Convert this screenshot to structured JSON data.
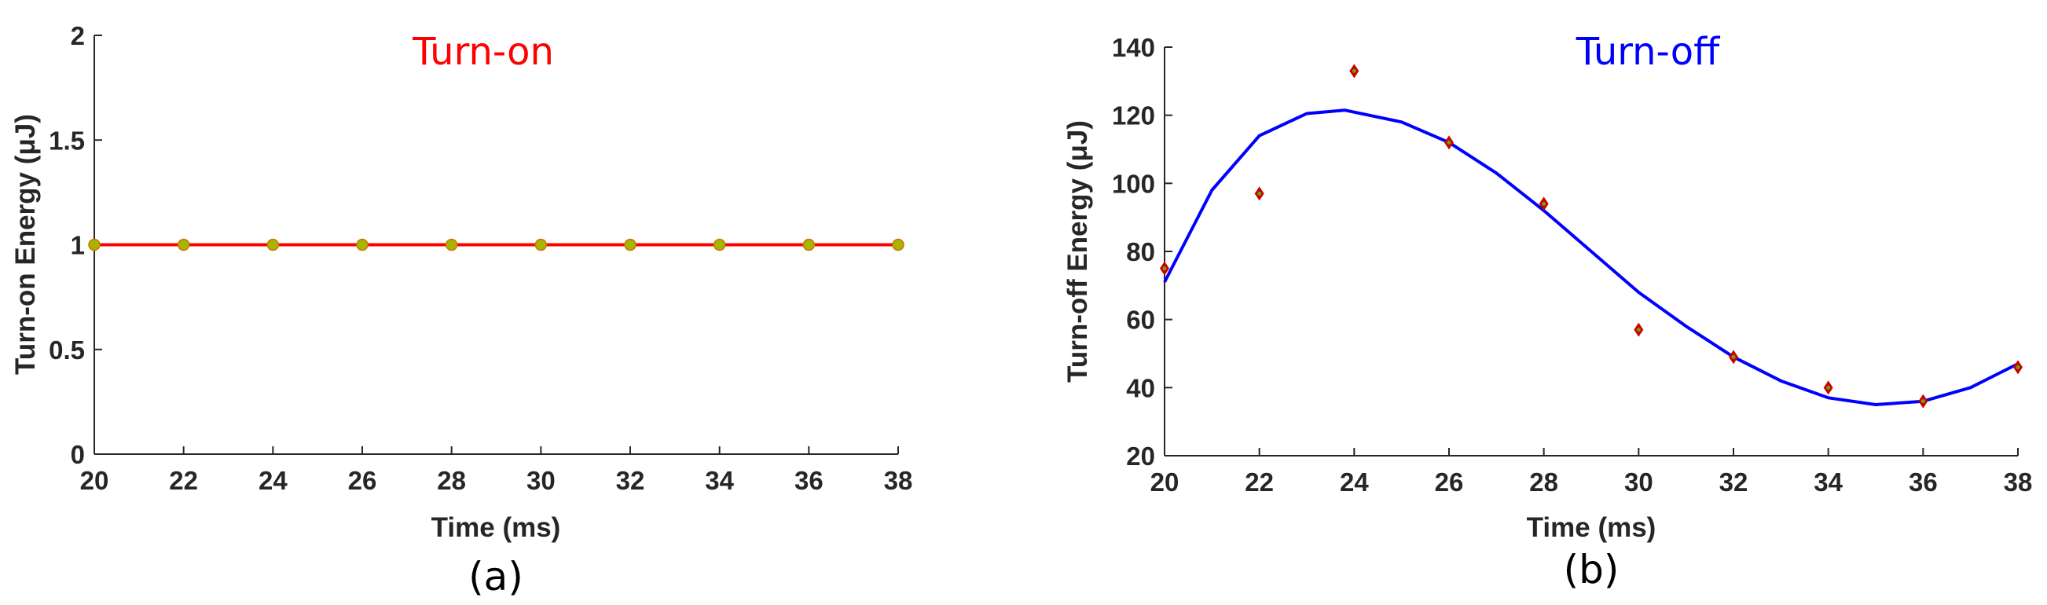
{
  "chart_data": [
    {
      "type": "line",
      "panel": "a",
      "title": "Turn-on",
      "title_color": "#ff0000",
      "xlabel": "Time (ms)",
      "ylabel": "Turn-on Energy (μJ)",
      "caption": "(a)",
      "xlim": [
        20,
        38
      ],
      "ylim": [
        0,
        2
      ],
      "xticks": [
        20,
        22,
        24,
        26,
        28,
        30,
        32,
        34,
        36,
        38
      ],
      "yticks": [
        0,
        0.5,
        1,
        1.5,
        2
      ],
      "ytick_labels": [
        "0",
        "0.5",
        "1",
        "1.5",
        "2"
      ],
      "grid": false,
      "line_color": "#ff0000",
      "marker_color": "#a8b400",
      "points": {
        "x": [
          20,
          22,
          24,
          26,
          28,
          30,
          32,
          34,
          36,
          38
        ],
        "y": [
          1,
          1,
          1,
          1,
          1,
          1,
          1,
          1,
          1,
          1
        ]
      },
      "fit": {
        "x": [
          20,
          38
        ],
        "y": [
          1,
          1
        ]
      }
    },
    {
      "type": "scatter",
      "panel": "b",
      "title": "Turn-off",
      "title_color": "#0000ff",
      "xlabel": "Time (ms)",
      "ylabel": "Turn-off Energy (μJ)",
      "caption": "(b)",
      "xlim": [
        20,
        38
      ],
      "ylim": [
        20,
        140
      ],
      "xticks": [
        20,
        22,
        24,
        26,
        28,
        30,
        32,
        34,
        36,
        38
      ],
      "yticks": [
        20,
        40,
        60,
        80,
        100,
        120,
        140
      ],
      "ytick_labels": [
        "20",
        "40",
        "60",
        "80",
        "100",
        "120",
        "140"
      ],
      "grid": false,
      "line_color": "#0000ff",
      "marker_color": "#cc0000",
      "marker_inner_color": "#66aa00",
      "points": {
        "x": [
          20,
          22,
          24,
          26,
          28,
          30,
          32,
          34,
          36,
          38
        ],
        "y": [
          75,
          97,
          133,
          112,
          94,
          57,
          49,
          40,
          36,
          46
        ]
      },
      "fit": {
        "x": [
          20,
          21,
          22,
          23,
          23.8,
          25,
          26,
          27,
          28,
          29,
          30,
          31,
          32,
          33,
          34,
          35,
          36,
          37,
          38
        ],
        "y": [
          71,
          98,
          114,
          120.5,
          121.5,
          118,
          112,
          103,
          92,
          80,
          68,
          58,
          49,
          42,
          37,
          35,
          36,
          40,
          47
        ]
      }
    }
  ]
}
